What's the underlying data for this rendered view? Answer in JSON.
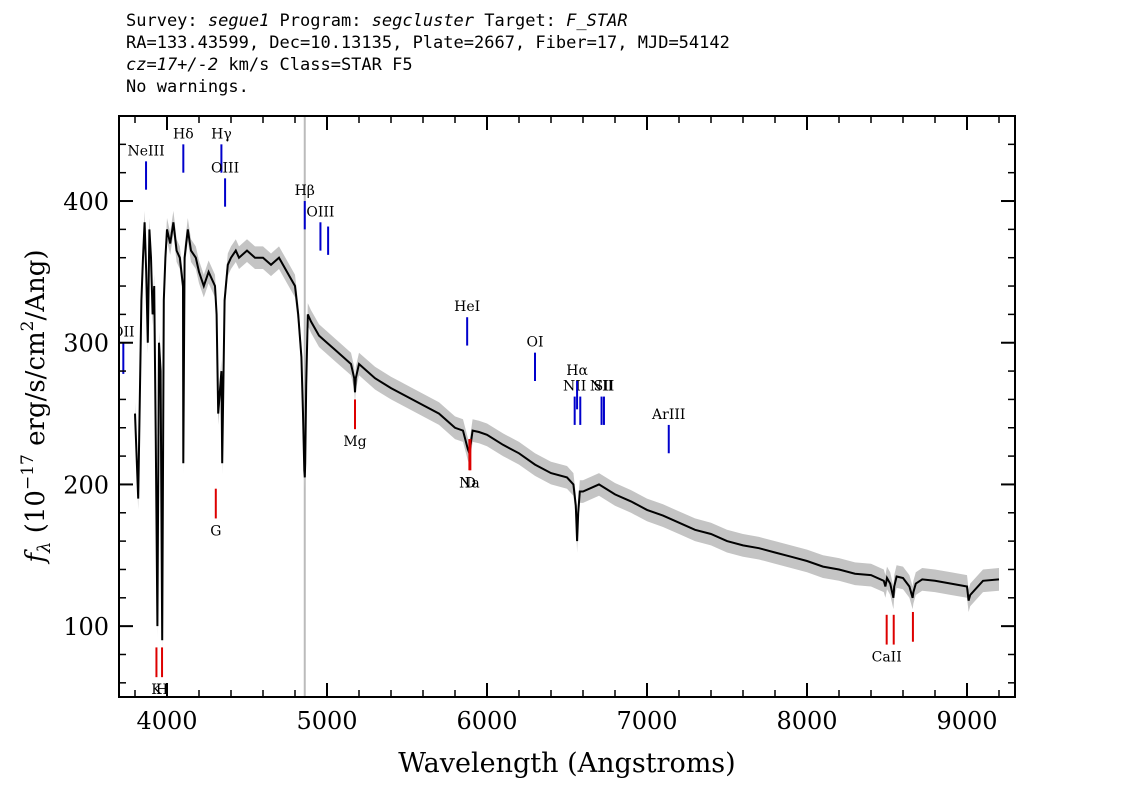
{
  "header": {
    "survey_label": "Survey: ",
    "survey": "segue1",
    "program_label": " Program: ",
    "program": "segcluster",
    "target_label": " Target: ",
    "target": "F_STAR",
    "line2": "RA=133.43599, Dec=10.13135, Plate=2667, Fiber=17, MJD=54142",
    "cz": "cz=17+/-2",
    "line3_rest": " km/s Class=STAR F5",
    "line4": "No warnings."
  },
  "chart_data": {
    "type": "line",
    "title": "",
    "xlabel": "Wavelength (Angstroms)",
    "ylabel": "f_λ (10^-17 erg/s/cm^2/Ang)",
    "ylabel_parts": {
      "f": "f",
      "lambda": "λ",
      "pre": " (10",
      "exp1": "−17",
      "mid": " erg/s/cm",
      "exp2": "2",
      "post": "/Ang)"
    },
    "xlim": [
      3700,
      9300
    ],
    "ylim": [
      50,
      460
    ],
    "xticks": [
      4000,
      5000,
      6000,
      7000,
      8000,
      9000
    ],
    "xtick_labels": [
      "4000",
      "5000",
      "6000",
      "7000",
      "8000",
      "9000"
    ],
    "yticks": [
      100,
      200,
      300,
      400
    ],
    "ytick_labels": [
      "100",
      "200",
      "300",
      "400"
    ],
    "vline_x": 4861,
    "series": [
      {
        "color": "#000000",
        "error_band_color": "#bbbbbb",
        "x": [
          3800,
          3820,
          3840,
          3850,
          3860,
          3870,
          3880,
          3890,
          3900,
          3910,
          3920,
          3930,
          3940,
          3950,
          3960,
          3970,
          3980,
          3990,
          4000,
          4020,
          4040,
          4060,
          4080,
          4100,
          4102,
          4110,
          4130,
          4150,
          4180,
          4200,
          4230,
          4260,
          4300,
          4310,
          4320,
          4340,
          4345,
          4360,
          4380,
          4400,
          4430,
          4450,
          4500,
          4550,
          4600,
          4650,
          4700,
          4750,
          4800,
          4820,
          4840,
          4850,
          4858,
          4861,
          4864,
          4870,
          4880,
          4900,
          4950,
          5000,
          5050,
          5100,
          5150,
          5170,
          5175,
          5180,
          5200,
          5250,
          5300,
          5400,
          5500,
          5600,
          5700,
          5800,
          5850,
          5880,
          5890,
          5895,
          5910,
          5950,
          6000,
          6100,
          6200,
          6300,
          6400,
          6500,
          6540,
          6555,
          6563,
          6570,
          6580,
          6600,
          6700,
          6800,
          6900,
          7000,
          7100,
          7200,
          7300,
          7400,
          7500,
          7600,
          7700,
          7800,
          7900,
          8000,
          8100,
          8200,
          8300,
          8400,
          8480,
          8490,
          8500,
          8520,
          8540,
          8545,
          8560,
          8600,
          8640,
          8660,
          8665,
          8680,
          8720,
          8800,
          8900,
          9000,
          9010,
          9020,
          9100,
          9200
        ],
        "y": [
          250,
          190,
          330,
          360,
          385,
          350,
          300,
          380,
          360,
          320,
          340,
          230,
          100,
          300,
          280,
          90,
          330,
          360,
          380,
          370,
          385,
          365,
          360,
          340,
          215,
          360,
          380,
          365,
          360,
          350,
          340,
          350,
          340,
          320,
          250,
          280,
          215,
          330,
          355,
          360,
          365,
          360,
          365,
          360,
          360,
          355,
          360,
          350,
          340,
          320,
          290,
          250,
          210,
          205,
          215,
          270,
          320,
          315,
          305,
          300,
          295,
          290,
          285,
          275,
          265,
          275,
          285,
          280,
          275,
          268,
          262,
          256,
          250,
          240,
          238,
          225,
          222,
          226,
          238,
          237,
          235,
          228,
          222,
          214,
          208,
          205,
          200,
          185,
          160,
          180,
          195,
          195,
          200,
          193,
          188,
          182,
          178,
          173,
          168,
          165,
          160,
          157,
          155,
          152,
          149,
          146,
          142,
          140,
          137,
          136,
          132,
          128,
          134,
          130,
          120,
          128,
          135,
          134,
          128,
          120,
          124,
          130,
          133,
          132,
          130,
          128,
          118,
          122,
          132,
          133
        ],
        "err": 8
      }
    ],
    "annotations": {
      "emission": [
        {
          "label": "OII",
          "x": 3727,
          "y0": 300,
          "y1": 278
        },
        {
          "label": "NeIII",
          "x": 3869,
          "y0": 428,
          "y1": 408
        },
        {
          "label": "Hδ",
          "x": 4102,
          "y0": 440,
          "y1": 420
        },
        {
          "label": "Hγ",
          "x": 4340,
          "y0": 440,
          "y1": 420
        },
        {
          "label": "OIII",
          "x": 4363,
          "y0": 416,
          "y1": 396
        },
        {
          "label": "Hβ",
          "x": 4861,
          "y0": 400,
          "y1": 380
        },
        {
          "label": "OIII",
          "x": 4959,
          "y0": 385,
          "y1": 365
        },
        {
          "label": "",
          "x": 5007,
          "y0": 382,
          "y1": 362
        },
        {
          "label": "HeI",
          "x": 5876,
          "y0": 318,
          "y1": 298
        },
        {
          "label": "OI",
          "x": 6300,
          "y0": 293,
          "y1": 273
        },
        {
          "label": "NII",
          "x": 6548,
          "y0": 262,
          "y1": 242
        },
        {
          "label": "Hα",
          "x": 6563,
          "y0": 273,
          "y1": 253
        },
        {
          "label": "",
          "x": 6583,
          "y0": 262,
          "y1": 242
        },
        {
          "label": "NII",
          "x": 6716,
          "y0": 262,
          "y1": 242
        },
        {
          "label": "SII",
          "x": 6731,
          "y0": 262,
          "y1": 242
        },
        {
          "label": "ArIII",
          "x": 7136,
          "y0": 242,
          "y1": 222
        }
      ],
      "absorption": [
        {
          "label": "K",
          "x": 3934,
          "y0": 85,
          "y1": 64
        },
        {
          "label": "H",
          "x": 3969,
          "y0": 85,
          "y1": 64
        },
        {
          "label": "G",
          "x": 4305,
          "y0": 197,
          "y1": 176
        },
        {
          "label": "Mg",
          "x": 5175,
          "y0": 260,
          "y1": 239
        },
        {
          "label": "Na",
          "x": 5890,
          "y0": 232,
          "y1": 210
        },
        {
          "label": "D",
          "x": 5896,
          "y0": 232,
          "y1": 210
        },
        {
          "label": "CaII",
          "x": 8498,
          "y0": 108,
          "y1": 87
        },
        {
          "label": "",
          "x": 8542,
          "y0": 108,
          "y1": 87
        },
        {
          "label": "",
          "x": 8662,
          "y0": 110,
          "y1": 89
        }
      ],
      "emission_color": "#0000cc",
      "absorption_color": "#dd0000"
    }
  }
}
